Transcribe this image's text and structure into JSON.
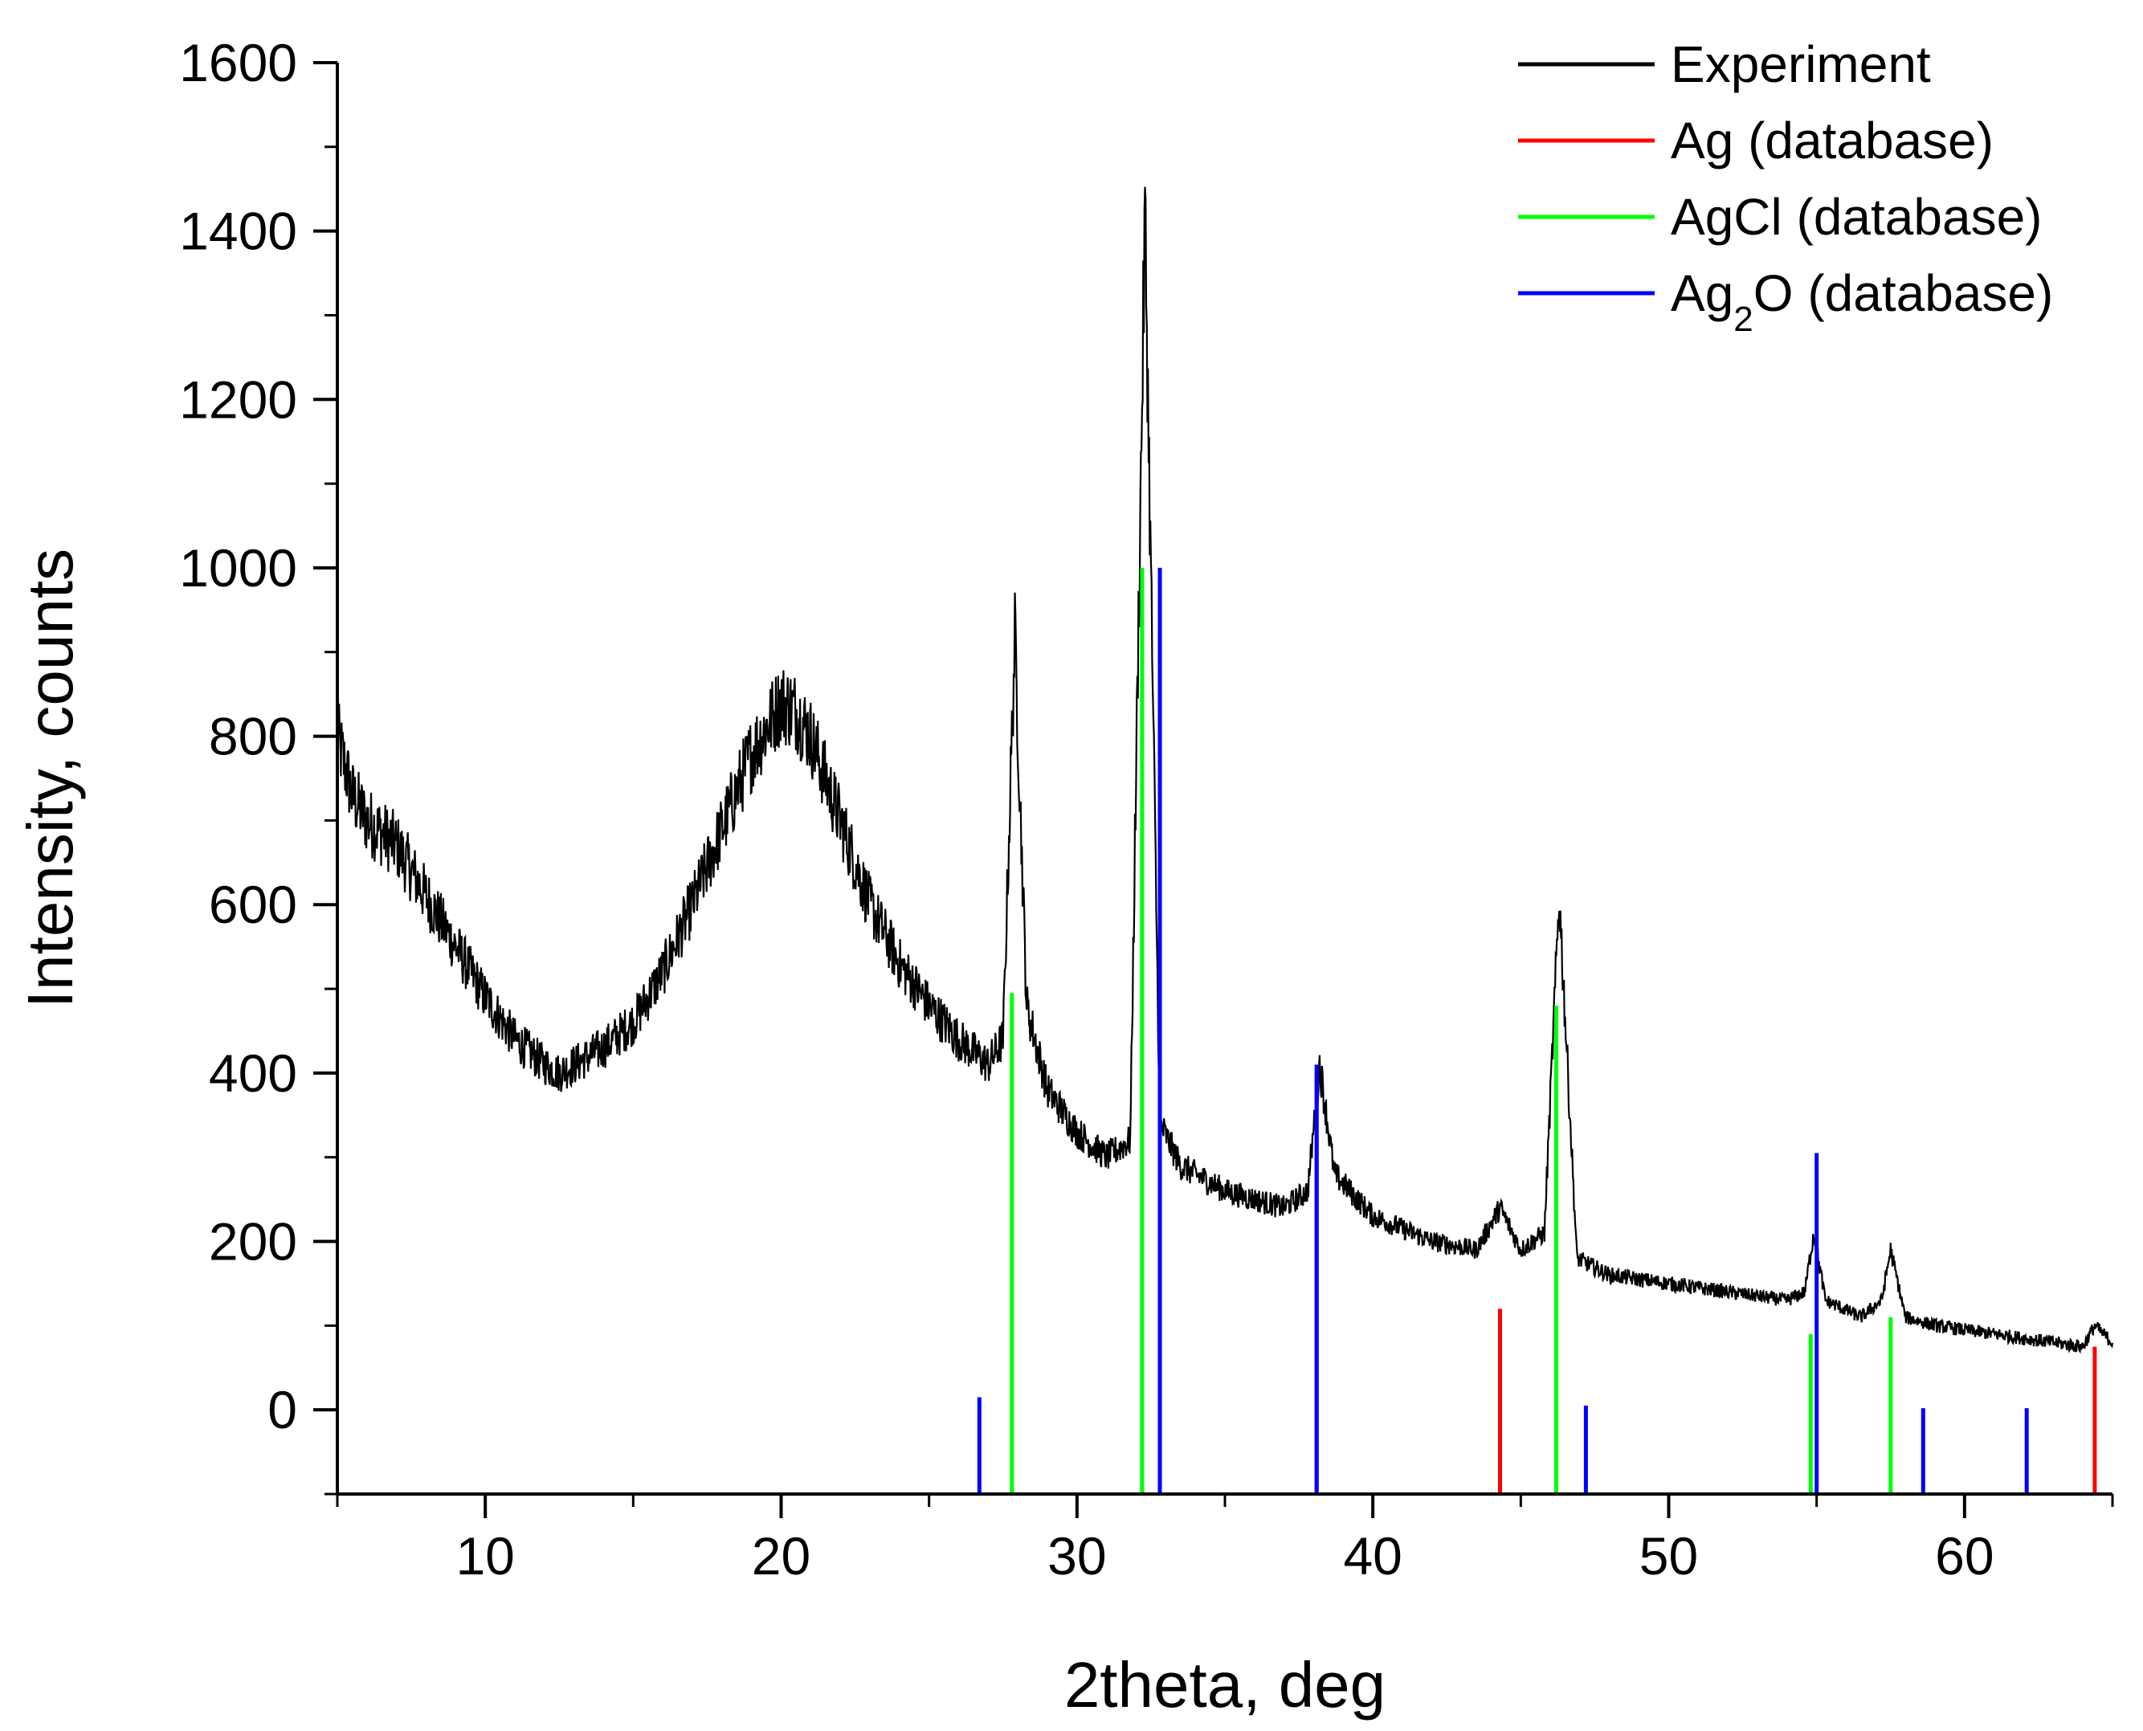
{
  "chart_data": {
    "type": "line",
    "title": "",
    "xlabel": "2theta, deg",
    "ylabel": "Intensity, counts",
    "xlim": [
      5,
      65
    ],
    "ylim": [
      -100,
      1600
    ],
    "x_ticks": [
      10,
      20,
      30,
      40,
      50,
      60
    ],
    "x_tick_labels": [
      "10",
      "20",
      "30",
      "40",
      "50",
      "60"
    ],
    "y_ticks": [
      0,
      200,
      400,
      600,
      800,
      1000,
      1200,
      1400,
      1600
    ],
    "y_tick_labels": [
      "0",
      "200",
      "400",
      "600",
      "800",
      "1000",
      "1200",
      "1400",
      "1600"
    ],
    "legend_position": "top-right",
    "series": [
      {
        "name": "Experiment",
        "color": "#000000",
        "kind": "line",
        "x": [
          5,
          5.5,
          6,
          7,
          8,
          9,
          10,
          11,
          12,
          12.5,
          13,
          14,
          15,
          16,
          17,
          18,
          19,
          20,
          20.5,
          21,
          22,
          23,
          24,
          25,
          26,
          27,
          27.5,
          27.9,
          28.3,
          29,
          30,
          31,
          31.8,
          32.3,
          32.8,
          33.5,
          35,
          37,
          37.8,
          38.2,
          38.7,
          40,
          42,
          43.5,
          44.3,
          45,
          45.8,
          46.3,
          46.9,
          48,
          50,
          52,
          54,
          54.6,
          54.9,
          55.3,
          56.5,
          57.2,
          57.5,
          58,
          59,
          60,
          62,
          64,
          64.4,
          65
        ],
        "y": [
          800,
          730,
          700,
          670,
          610,
          550,
          490,
          440,
          410,
          400,
          410,
          430,
          460,
          520,
          600,
          690,
          780,
          840,
          830,
          800,
          700,
          600,
          530,
          480,
          440,
          410,
          440,
          920,
          480,
          380,
          330,
          300,
          320,
          1420,
          340,
          290,
          260,
          240,
          260,
          410,
          280,
          230,
          200,
          190,
          240,
          190,
          210,
          610,
          180,
          160,
          150,
          140,
          130,
          140,
          210,
          130,
          110,
          130,
          190,
          110,
          100,
          95,
          85,
          75,
          100,
          80
        ]
      },
      {
        "name": "Ag (database)",
        "color": "#ff0000",
        "kind": "sticks",
        "x": [
          38.1,
          44.3,
          64.4
        ],
        "y": [
          400,
          120,
          75
        ]
      },
      {
        "name": "AgCl (database)",
        "color": "#00ff00",
        "kind": "sticks",
        "x": [
          27.8,
          32.2,
          46.2,
          54.8,
          57.5
        ],
        "y": [
          495,
          1000,
          480,
          90,
          110
        ]
      },
      {
        "name": "Ag2O (database)",
        "color": "#0000ff",
        "kind": "sticks",
        "x": [
          26.7,
          32.8,
          38.1,
          55.0,
          47.2,
          58.6,
          62.1
        ],
        "y": [
          15,
          1000,
          410,
          305,
          5,
          2,
          2
        ]
      }
    ],
    "legend": [
      {
        "label": "Experiment",
        "color": "#000000"
      },
      {
        "label": "Ag (database)",
        "color": "#ff0000"
      },
      {
        "label": "AgCl (database)",
        "color": "#00ff00"
      },
      {
        "label_prefix": "Ag",
        "label_sub": "2",
        "label_suffix": "O (database)",
        "color": "#0000ff"
      }
    ]
  }
}
